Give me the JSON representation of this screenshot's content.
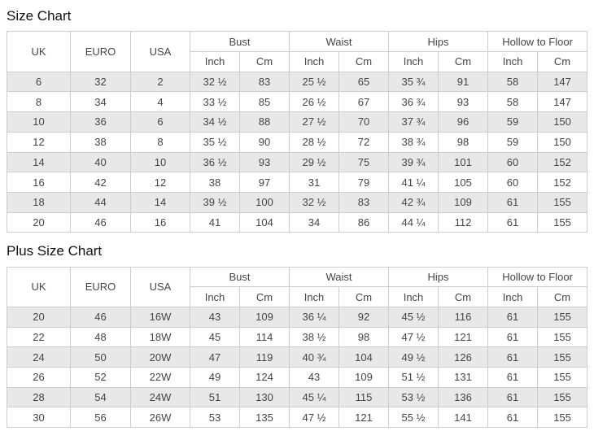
{
  "size_chart": {
    "title": "Size Chart",
    "headers": {
      "uk": "UK",
      "euro": "EURO",
      "usa": "USA",
      "bust": "Bust",
      "waist": "Waist",
      "hips": "Hips",
      "hollow_to_floor": "Hollow to Floor",
      "inch": "Inch",
      "cm": "Cm"
    },
    "rows": [
      [
        "6",
        "32",
        "2",
        "32 ½",
        "83",
        "25 ½",
        "65",
        "35 ¾",
        "91",
        "58",
        "147"
      ],
      [
        "8",
        "34",
        "4",
        "33 ½",
        "85",
        "26 ½",
        "67",
        "36 ¾",
        "93",
        "58",
        "147"
      ],
      [
        "10",
        "36",
        "6",
        "34 ½",
        "88",
        "27 ½",
        "70",
        "37 ¾",
        "96",
        "59",
        "150"
      ],
      [
        "12",
        "38",
        "8",
        "35 ½",
        "90",
        "28 ½",
        "72",
        "38 ¾",
        "98",
        "59",
        "150"
      ],
      [
        "14",
        "40",
        "10",
        "36 ½",
        "93",
        "29 ½",
        "75",
        "39 ¾",
        "101",
        "60",
        "152"
      ],
      [
        "16",
        "42",
        "12",
        "38",
        "97",
        "31",
        "79",
        "41 ¼",
        "105",
        "60",
        "152"
      ],
      [
        "18",
        "44",
        "14",
        "39 ½",
        "100",
        "32 ½",
        "83",
        "42 ¾",
        "109",
        "61",
        "155"
      ],
      [
        "20",
        "46",
        "16",
        "41",
        "104",
        "34",
        "86",
        "44 ¼",
        "112",
        "61",
        "155"
      ]
    ]
  },
  "plus_size_chart": {
    "title": "Plus Size Chart",
    "headers": {
      "uk": "UK",
      "euro": "EURO",
      "usa": "USA",
      "bust": "Bust",
      "waist": "Waist",
      "hips": "Hips",
      "hollow_to_floor": "Hollow to Floor",
      "inch": "Inch",
      "cm": "Cm"
    },
    "rows": [
      [
        "20",
        "46",
        "16W",
        "43",
        "109",
        "36 ¼",
        "92",
        "45 ½",
        "116",
        "61",
        "155"
      ],
      [
        "22",
        "48",
        "18W",
        "45",
        "114",
        "38 ½",
        "98",
        "47 ½",
        "121",
        "61",
        "155"
      ],
      [
        "24",
        "50",
        "20W",
        "47",
        "119",
        "40 ¾",
        "104",
        "49 ½",
        "126",
        "61",
        "155"
      ],
      [
        "26",
        "52",
        "22W",
        "49",
        "124",
        "43",
        "109",
        "51 ½",
        "131",
        "61",
        "155"
      ],
      [
        "28",
        "54",
        "24W",
        "51",
        "130",
        "45 ¼",
        "115",
        "53 ½",
        "136",
        "61",
        "155"
      ],
      [
        "30",
        "56",
        "26W",
        "53",
        "135",
        "47 ½",
        "121",
        "55 ½",
        "141",
        "61",
        "155"
      ]
    ]
  },
  "colors": {
    "stripe": "#e8e8e8",
    "border": "#cccccc",
    "text": "#454545",
    "title": "#111111",
    "background": "#ffffff"
  }
}
